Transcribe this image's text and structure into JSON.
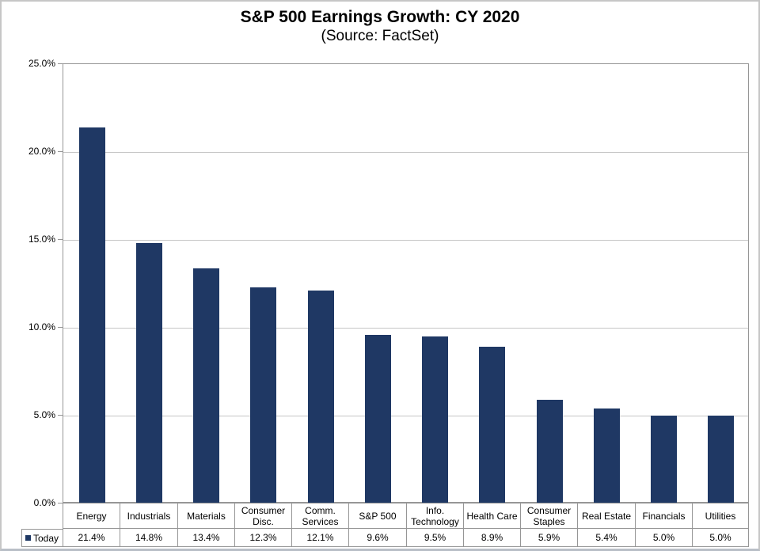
{
  "title": "S&P 500 Earnings Growth: CY 2020",
  "subtitle": "(Source: FactSet)",
  "legend": {
    "label": "Today",
    "marker_color": "#1f3864"
  },
  "chart_data": {
    "type": "bar",
    "title": "S&P 500 Earnings Growth: CY 2020",
    "subtitle": "(Source: FactSet)",
    "categories": [
      "Energy",
      "Industrials",
      "Materials",
      "Consumer Disc.",
      "Comm. Services",
      "S&P 500",
      "Info. Technology",
      "Health Care",
      "Consumer Staples",
      "Real Estate",
      "Financials",
      "Utilities"
    ],
    "series": [
      {
        "name": "Today",
        "values": [
          21.4,
          14.8,
          13.4,
          12.3,
          12.1,
          9.6,
          9.5,
          8.9,
          5.9,
          5.4,
          5.0,
          5.0
        ]
      }
    ],
    "value_labels": [
      "21.4%",
      "14.8%",
      "13.4%",
      "12.3%",
      "12.1%",
      "9.6%",
      "9.5%",
      "8.9%",
      "5.9%",
      "5.4%",
      "5.0%",
      "5.0%"
    ],
    "xlabel": "",
    "ylabel": "",
    "ylim": [
      0,
      25
    ],
    "ytick_interval": 5,
    "ytick_labels": [
      "0.0%",
      "5.0%",
      "10.0%",
      "15.0%",
      "20.0%",
      "25.0%"
    ],
    "grid": true,
    "legend_position": "bottom-left-of-data-table",
    "bar_color": "#1f3864",
    "gridline_color": "#c6c6c6"
  }
}
